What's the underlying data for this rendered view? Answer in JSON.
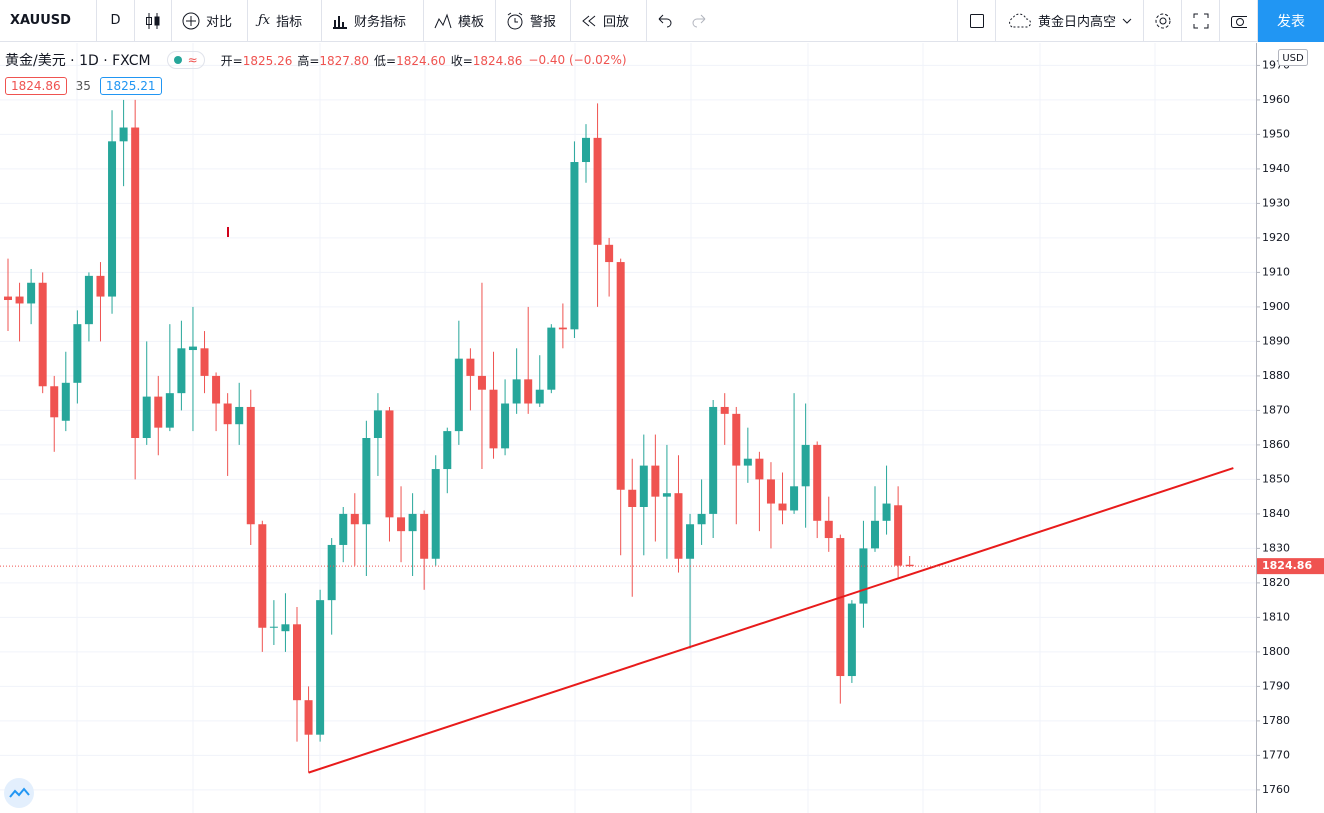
{
  "toolbar": {
    "symbol": "XAUUSD",
    "interval": "D",
    "compare": "对比",
    "indicators": "指标",
    "financials": "财务指标",
    "templates": "模板",
    "alert": "警报",
    "replay": "回放",
    "layout_name": "黄金日内高空",
    "publish": "发表"
  },
  "legend": {
    "title": "黄金/美元 · 1D · FXCM",
    "ohlc": [
      {
        "label": "开=",
        "value": "1825.26"
      },
      {
        "label": "高=",
        "value": "1827.80"
      },
      {
        "label": "低=",
        "value": "1824.60"
      },
      {
        "label": "收=",
        "value": "1824.86"
      }
    ],
    "change": "−0.40 (−0.02%)",
    "sell": "1824.86",
    "spread": "35",
    "buy": "1825.21"
  },
  "chart_data": {
    "type": "candlestick",
    "currency": "USD",
    "up_color": "#26a69a",
    "down_color": "#ef5350",
    "grid": true,
    "ylim": [
      1753.3,
      1976.5
    ],
    "yticks": [
      1760,
      1770,
      1780,
      1790,
      1800,
      1810,
      1820,
      1830,
      1840,
      1850,
      1860,
      1870,
      1880,
      1890,
      1900,
      1910,
      1920,
      1930,
      1940,
      1950,
      1960,
      1970
    ],
    "last_price": 1824.86,
    "open": [
      1903,
      1903,
      1901,
      1907,
      1877,
      1867,
      1878,
      1895,
      1909,
      1903,
      1948,
      1952,
      1862,
      1874,
      1865,
      1875,
      1887.5,
      1888,
      1880,
      1872,
      1866,
      1871,
      1837,
      1807,
      1806,
      1808,
      1786,
      1776,
      1815,
      1831,
      1840,
      1837,
      1862,
      1870,
      1839,
      1835,
      1840,
      1827,
      1853,
      1864,
      1885,
      1880,
      1876,
      1859,
      1872,
      1879,
      1872,
      1876,
      1894,
      1893.5,
      1942,
      1949,
      1918,
      1913,
      1847,
      1842,
      1854,
      1845,
      1846,
      1827,
      1837,
      1840,
      1871,
      1869,
      1854,
      1856,
      1850,
      1843,
      1841,
      1848,
      1860,
      1838,
      1833,
      1793,
      1814,
      1830,
      1838,
      1842.5,
      1825.26
    ],
    "high": [
      1914,
      1907,
      1911,
      1910,
      1880,
      1887,
      1899,
      1910,
      1913,
      1957,
      1960,
      1960,
      1890,
      1880,
      1895,
      1896,
      1900,
      1893,
      1881,
      1875,
      1878,
      1876,
      1838,
      1815,
      1817,
      1813,
      1790,
      1818,
      1833,
      1842,
      1846,
      1867,
      1875,
      1871,
      1848,
      1846,
      1841,
      1857,
      1865,
      1896,
      1888,
      1907,
      1887,
      1879,
      1888,
      1900,
      1886,
      1895,
      1901,
      1948,
      1953,
      1959,
      1920,
      1914,
      1856,
      1863,
      1863,
      1860,
      1857,
      1840,
      1850,
      1873,
      1875,
      1871,
      1865,
      1858,
      1855,
      1852,
      1875,
      1872,
      1861,
      1845,
      1834,
      1815,
      1838,
      1848,
      1854,
      1848,
      1827.8
    ],
    "low": [
      1893,
      1890,
      1895,
      1875,
      1858,
      1864,
      1872,
      1890,
      1890,
      1898,
      1935,
      1850,
      1860,
      1857,
      1864,
      1870,
      1864,
      1875,
      1864,
      1851,
      1860,
      1831,
      1800,
      1802,
      1800,
      1774,
      1765,
      1774,
      1805,
      1826,
      1825,
      1822,
      1851,
      1832,
      1826,
      1822,
      1818,
      1825,
      1846,
      1860,
      1870,
      1853,
      1856,
      1857,
      1869,
      1869,
      1871,
      1875,
      1888,
      1891,
      1936,
      1900,
      1903,
      1828,
      1816,
      1828,
      1832,
      1827,
      1823,
      1801,
      1831,
      1833,
      1860,
      1837,
      1849,
      1835,
      1830,
      1837,
      1840,
      1836,
      1833,
      1829,
      1785,
      1791,
      1807,
      1829,
      1834,
      1821,
      1824.6
    ],
    "close": [
      1902,
      1901,
      1907,
      1877,
      1868,
      1878,
      1895,
      1909,
      1903,
      1948,
      1952,
      1862,
      1874,
      1865,
      1875,
      1888,
      1888.5,
      1880,
      1872,
      1866,
      1871,
      1837,
      1807,
      1807.3,
      1808,
      1786,
      1776,
      1815,
      1831,
      1840,
      1837,
      1862,
      1870,
      1839,
      1835,
      1840,
      1827,
      1853,
      1864,
      1885,
      1880,
      1876,
      1859,
      1872,
      1879,
      1872,
      1876,
      1894,
      1893.5,
      1942,
      1949,
      1918,
      1913,
      1847,
      1842,
      1854,
      1845,
      1846,
      1827,
      1837,
      1840,
      1871,
      1869,
      1854,
      1856,
      1850,
      1843,
      1841,
      1848,
      1860,
      1838,
      1833,
      1793,
      1814,
      1830,
      1838,
      1843,
      1825,
      1824.86
    ],
    "trendline": {
      "color": "#e81b1b",
      "index": [
        26,
        106
      ],
      "values": [
        1765,
        1853.3
      ]
    }
  }
}
